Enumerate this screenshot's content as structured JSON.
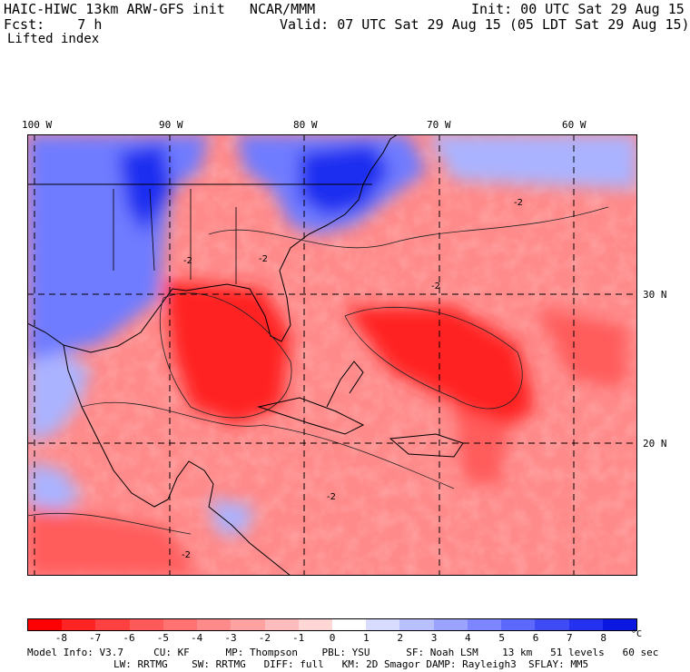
{
  "header": {
    "title": "HAIC-HIWC 13km ARW-GFS init   NCAR/MMM",
    "init": "Init: 00 UTC Sat 29 Aug 15",
    "fcst": "Fcst:    7 h",
    "valid": "Valid: 07 UTC Sat 29 Aug 15 (05 LDT Sat 29 Aug 15)",
    "field": "Lifted index"
  },
  "map": {
    "longitude_labels": [
      "100 W",
      "90 W",
      "80 W",
      "70 W",
      "60 W"
    ],
    "latitude_labels": [
      "30 N",
      "20 N"
    ],
    "contour_label": "-2",
    "colors": {
      "strong_negative": "#ff2020",
      "negative": "#ff8a8a",
      "weak_negative": "#ffc8c8",
      "positive": "#6f7cff",
      "strong_positive": "#1f2ff0"
    }
  },
  "colorbar": {
    "ticks": [
      "-8",
      "-7",
      "-6",
      "-5",
      "-4",
      "-3",
      "-2",
      "-1",
      "0",
      "1",
      "2",
      "3",
      "4",
      "5",
      "6",
      "7",
      "8"
    ],
    "unit": "°C",
    "colors": [
      "#ff0000",
      "#ff2424",
      "#ff4040",
      "#ff5a5a",
      "#ff7272",
      "#ff8a8a",
      "#ffa2a2",
      "#ffbcbc",
      "#ffd6d6",
      "#ffffff",
      "#d8dcff",
      "#b9c0ff",
      "#9aa3ff",
      "#7c86ff",
      "#5d69fc",
      "#3f4cf6",
      "#2432ef",
      "#0a18e0"
    ]
  },
  "model_info": {
    "line1": "Model Info: V3.7     CU: KF      MP: Thompson    PBL: YSU      SF: Noah LSM    13 km   51 levels   60 sec",
    "line2": "LW: RRTMG    SW: RRTMG   DIFF: full   KM: 2D Smagor DAMP: Rayleigh3  SFLAY: MM5"
  }
}
